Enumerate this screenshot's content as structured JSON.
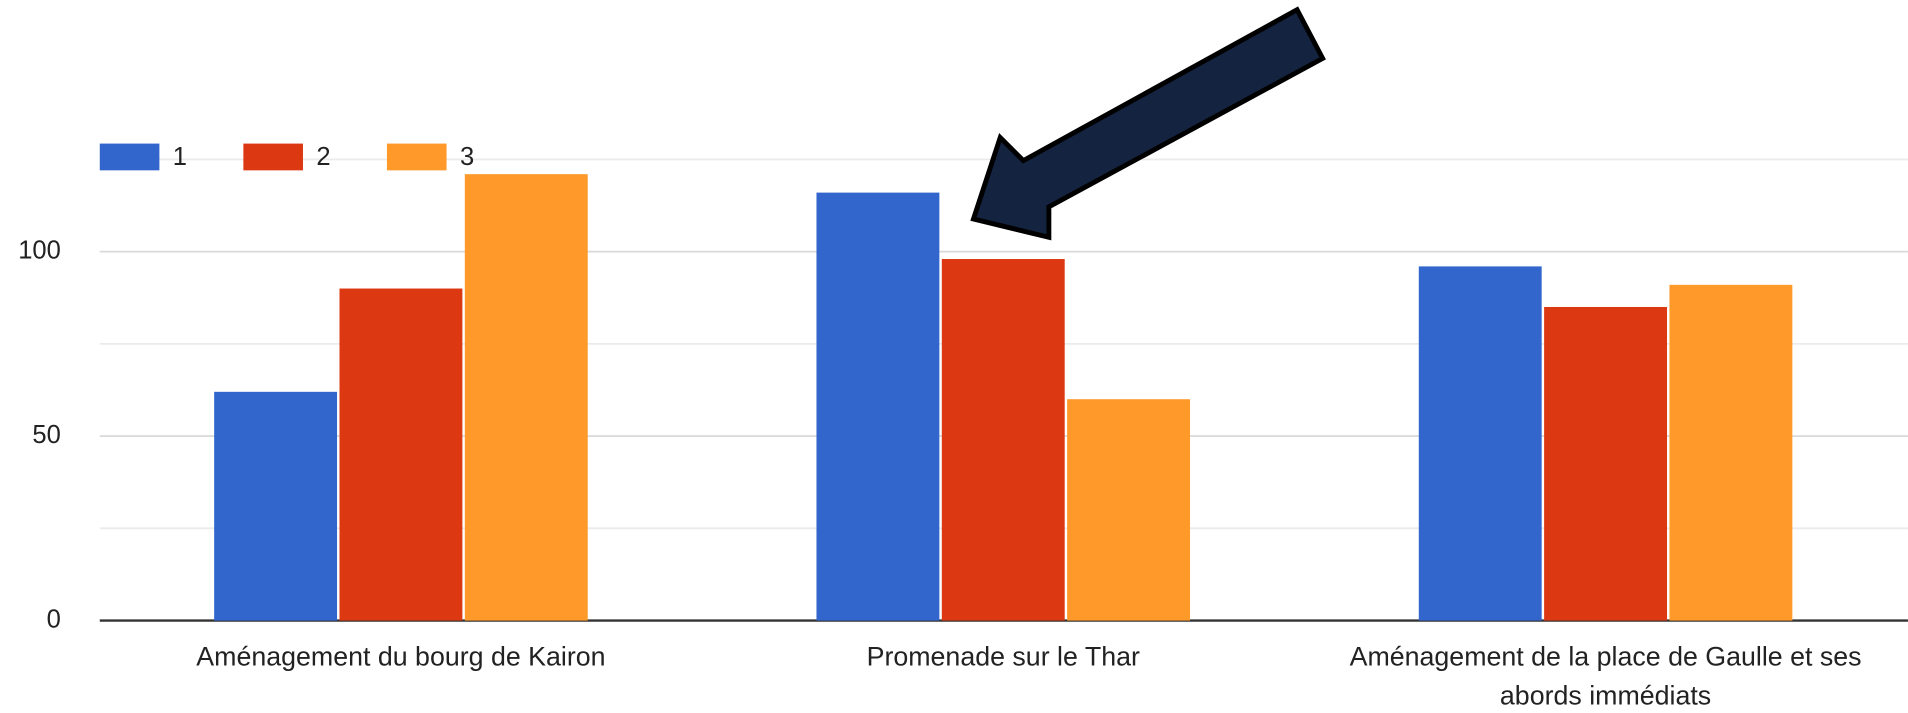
{
  "chart_data": {
    "type": "bar",
    "categories": [
      "Aménagement du bourg de Kairon",
      "Promenade sur le Thar",
      "Aménagement de la place de Gaulle et ses abords immédiats"
    ],
    "series": [
      {
        "name": "1",
        "color": "#3366cc",
        "values": [
          62,
          116,
          96
        ]
      },
      {
        "name": "2",
        "color": "#dc3912",
        "values": [
          90,
          98,
          85
        ]
      },
      {
        "name": "3",
        "color": "#ff9a2a",
        "values": [
          121,
          60,
          91
        ]
      }
    ],
    "ylim": [
      0,
      125
    ],
    "yticks": [
      0,
      50,
      100
    ],
    "minor_yticks": [
      25,
      75,
      125
    ],
    "grid": true,
    "legend": "top-left"
  }
}
